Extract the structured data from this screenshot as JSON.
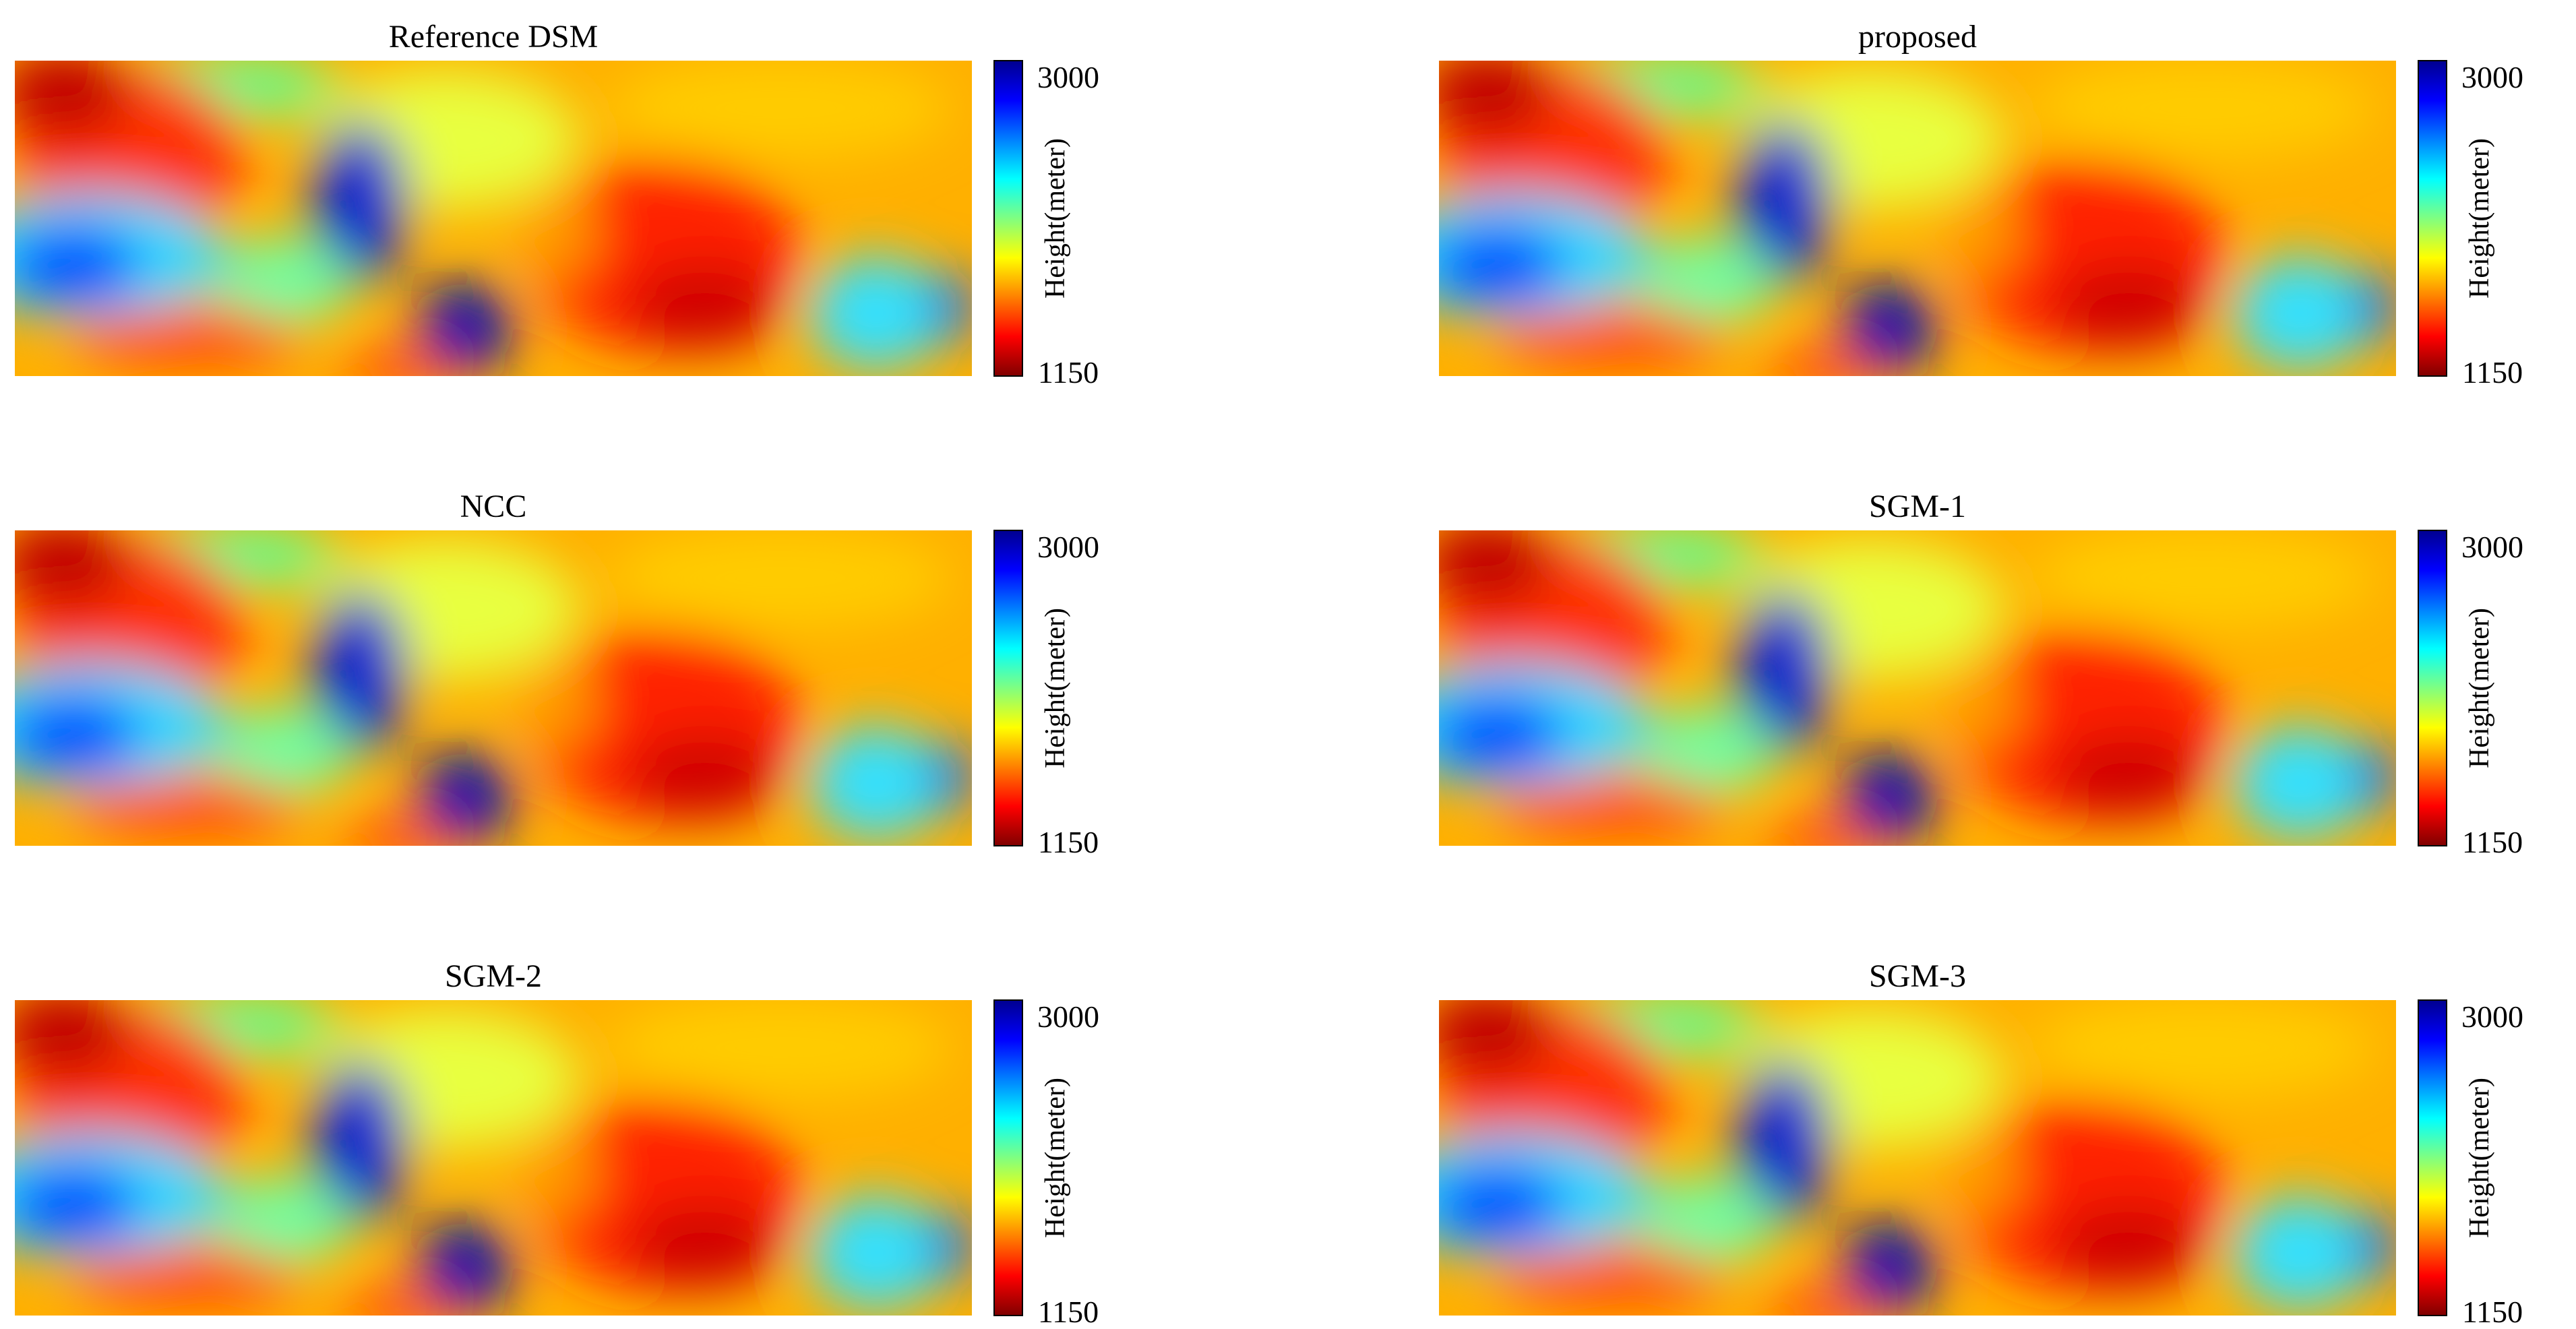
{
  "chart_data": [
    {
      "type": "heatmap",
      "title": "Reference DSM",
      "colorbar": {
        "label": "Height(meter)",
        "max_label": "3000",
        "min_label": "1150",
        "range": [
          1150,
          3000
        ]
      }
    },
    {
      "type": "heatmap",
      "title": "proposed",
      "colorbar": {
        "label": "Height(meter)",
        "max_label": "3000",
        "min_label": "1150",
        "range": [
          1150,
          3000
        ]
      }
    },
    {
      "type": "heatmap",
      "title": "NCC",
      "colorbar": {
        "label": "Height(meter)",
        "max_label": "3000",
        "min_label": "1150",
        "range": [
          1150,
          3000
        ]
      }
    },
    {
      "type": "heatmap",
      "title": "SGM-1",
      "colorbar": {
        "label": "Height(meter)",
        "max_label": "3000",
        "min_label": "1150",
        "range": [
          1150,
          3000
        ]
      }
    },
    {
      "type": "heatmap",
      "title": "SGM-2",
      "colorbar": {
        "label": "Height(meter)",
        "max_label": "3000",
        "min_label": "1150",
        "range": [
          1150,
          3000
        ]
      }
    },
    {
      "type": "heatmap",
      "title": "SGM-3",
      "colorbar": {
        "label": "Height(meter)",
        "max_label": "3000",
        "min_label": "1150",
        "range": [
          1150,
          3000
        ]
      }
    }
  ],
  "colormap": [
    "#7f0000",
    "#ff0000",
    "#ff8000",
    "#ffff00",
    "#80ff80",
    "#00ffff",
    "#0080ff",
    "#0000ff",
    "#00008f"
  ]
}
